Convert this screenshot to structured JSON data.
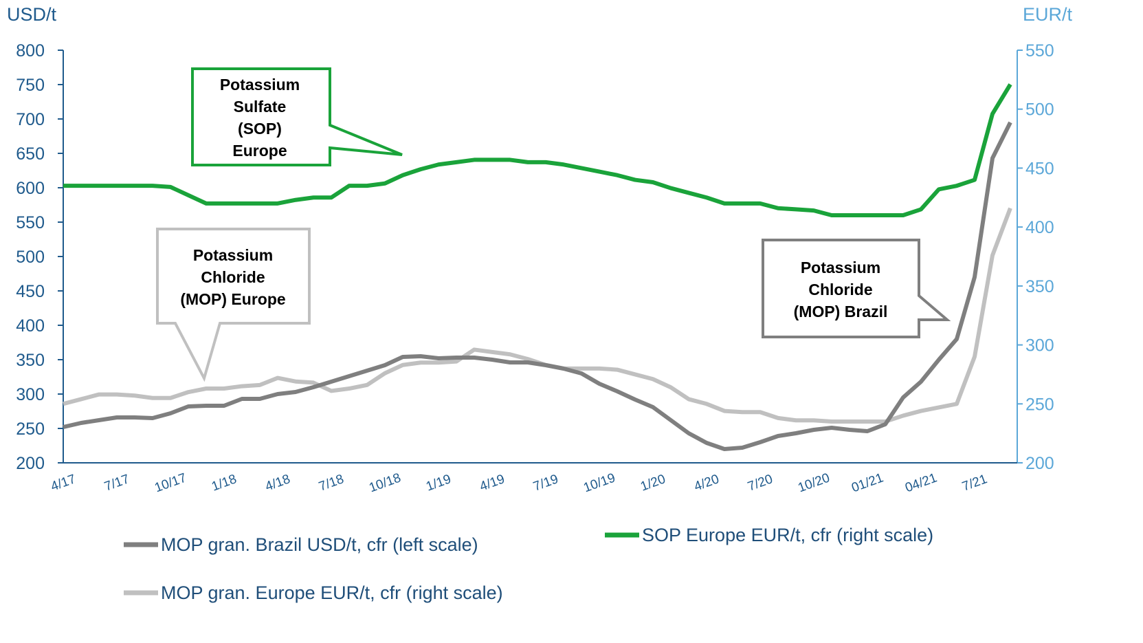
{
  "chart_data": {
    "type": "line",
    "y_label": "USD/t",
    "y2_label": "EUR/t",
    "categories": [
      "4/17",
      null,
      null,
      "7/17",
      null,
      null,
      "10/17",
      null,
      null,
      "1/18",
      null,
      null,
      "4/18",
      null,
      null,
      "7/18",
      null,
      null,
      "10/18",
      null,
      null,
      "1/19",
      null,
      null,
      "4/19",
      null,
      null,
      "7/19",
      null,
      null,
      "10/19",
      null,
      null,
      "1/20",
      null,
      null,
      "4/20",
      null,
      null,
      "7/20",
      null,
      null,
      "10/20",
      null,
      null,
      "01/21",
      null,
      null,
      "04/21",
      null,
      null,
      "7/21",
      null,
      null
    ],
    "ylim": [
      200,
      800
    ],
    "yticks": [
      200,
      250,
      300,
      350,
      400,
      450,
      500,
      550,
      600,
      650,
      700,
      750,
      800
    ],
    "y2lim": [
      200,
      550
    ],
    "y2ticks": [
      200,
      250,
      300,
      350,
      400,
      450,
      500,
      550
    ],
    "series": [
      {
        "name": "MOP gran. Brazil USD/t, cfr (left scale)",
        "color": "#7f7f7f",
        "axis": "y",
        "values": [
          252,
          258,
          262,
          266,
          266,
          265,
          272,
          282,
          283,
          283,
          293,
          293,
          300,
          303,
          310,
          318,
          326,
          334,
          342,
          354,
          355,
          352,
          353,
          353,
          350,
          346,
          346,
          342,
          337,
          330,
          315,
          304,
          292,
          281,
          262,
          243,
          229,
          220,
          222,
          230,
          239,
          243,
          248,
          251,
          248,
          246,
          256,
          295,
          318,
          350,
          380,
          470,
          643,
          695
        ]
      },
      {
        "name": "SOP Europe EUR/t, cfr (right scale)",
        "color": "#1aa33a",
        "axis": "y2",
        "values": [
          435,
          435,
          435,
          435,
          435,
          435,
          434,
          427,
          420,
          420,
          420,
          420,
          420,
          423,
          425,
          425,
          435,
          435,
          437,
          444,
          449,
          453,
          455,
          457,
          457,
          457,
          455,
          455,
          453,
          450,
          447,
          444,
          440,
          438,
          433,
          429,
          425,
          420,
          420,
          420,
          416,
          415,
          414,
          410,
          410,
          410,
          410,
          410,
          415,
          432,
          435,
          440,
          496,
          521
        ]
      },
      {
        "name": "MOP gran. Europe EUR/t, cfr (right scale)",
        "color": "#c0c0c0",
        "axis": "y2",
        "values": [
          250,
          254,
          258,
          258,
          257,
          255,
          255,
          260,
          263,
          263,
          265,
          266,
          272,
          269,
          268,
          261,
          263,
          266,
          276,
          283,
          285,
          285,
          286,
          296,
          294,
          292,
          288,
          283,
          280,
          280,
          280,
          279,
          275,
          271,
          264,
          254,
          250,
          244,
          243,
          243,
          238,
          236,
          236,
          235,
          235,
          235,
          235,
          240,
          244,
          247,
          250,
          290,
          376,
          416
        ]
      }
    ],
    "annotations": [
      {
        "lines": [
          "Potassium",
          "Sulfate",
          "(SOP)",
          "Europe"
        ]
      },
      {
        "lines": [
          "Potassium",
          "Chloride",
          "(MOP) Europe"
        ]
      },
      {
        "lines": [
          "Potassium",
          "Chloride",
          "(MOP) Brazil"
        ]
      }
    ]
  }
}
